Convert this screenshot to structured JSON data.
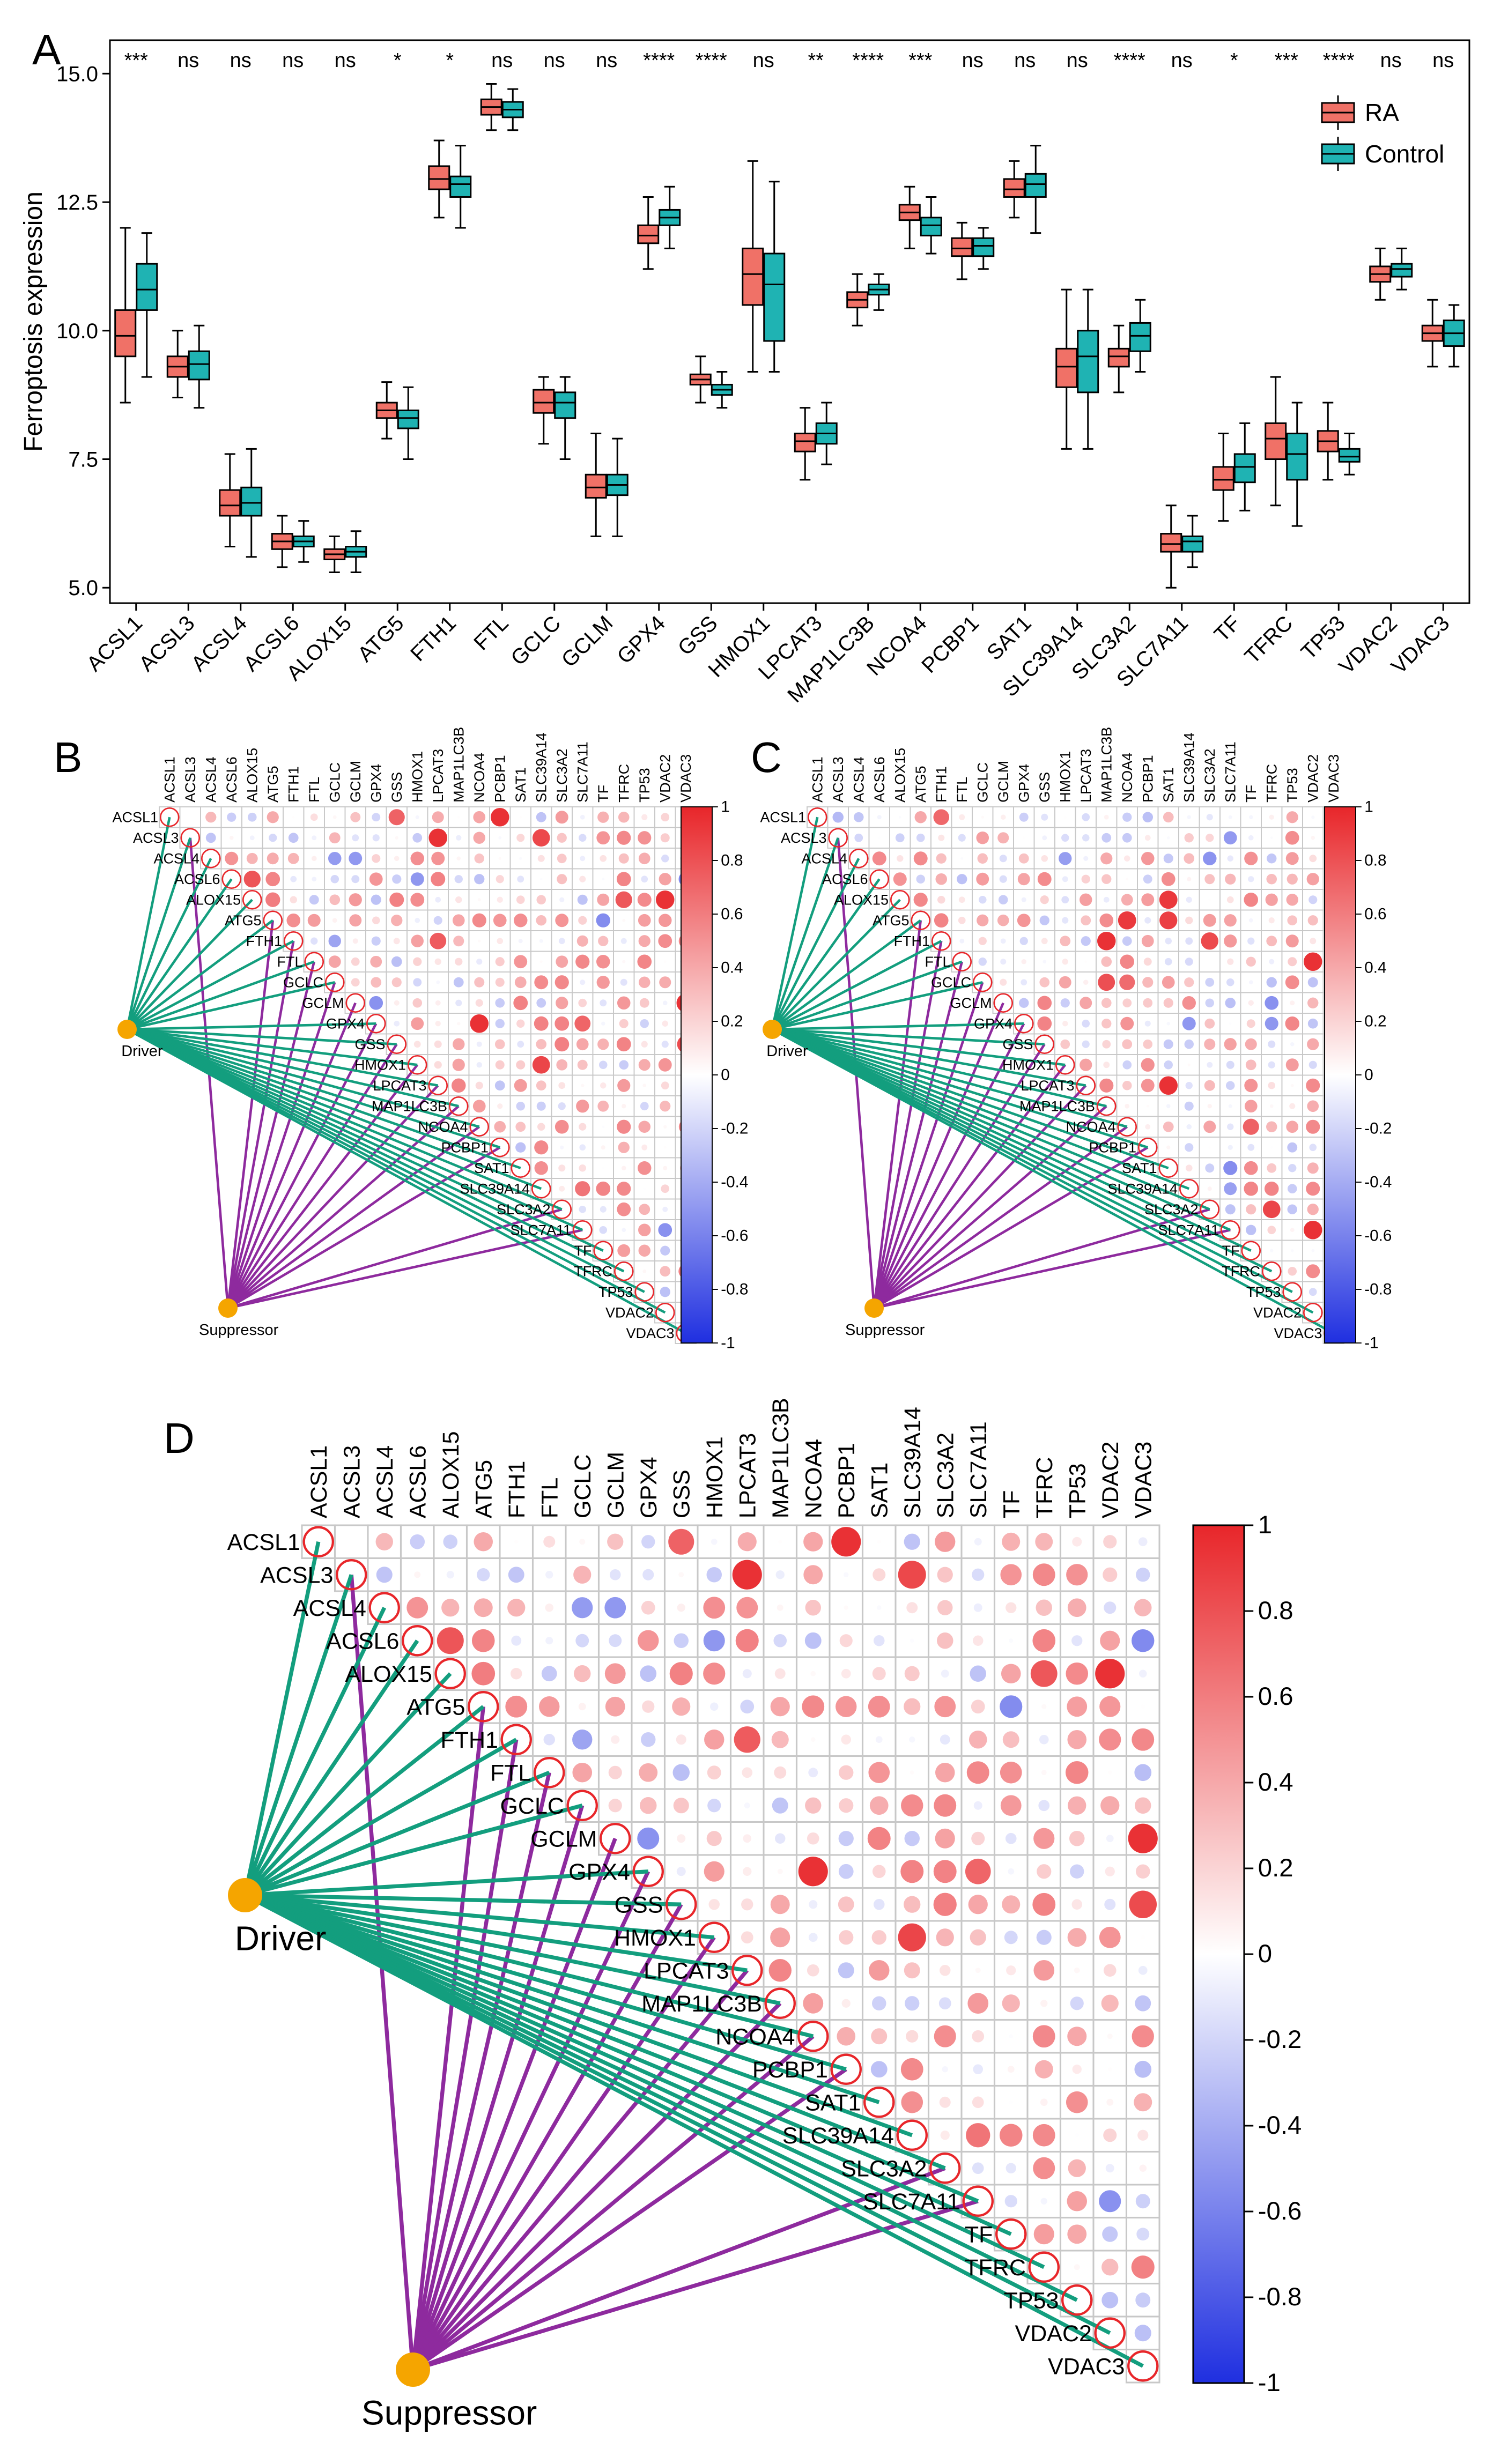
{
  "chart_data": [
    {
      "panel": "A",
      "type": "box",
      "ylabel": "Ferroptosis expression",
      "xlabel": "",
      "ylim": [
        4.7,
        15.65
      ],
      "yticks": [
        5.0,
        7.5,
        10.0,
        12.5,
        15.0
      ],
      "ytick_labels": [
        "5.0",
        "7.5",
        "10.0",
        "12.5",
        "15.0"
      ],
      "legend": {
        "position": "top-right",
        "entries": [
          "RA",
          "Control"
        ]
      },
      "colors": {
        "RA": "#F07167",
        "Control": "#1FB3B3"
      },
      "categories": [
        "ACSL1",
        "ACSL3",
        "ACSL4",
        "ACSL6",
        "ALOX15",
        "ATG5",
        "FTH1",
        "FTL",
        "GCLC",
        "GCLM",
        "GPX4",
        "GSS",
        "HMOX1",
        "LPCAT3",
        "MAP1LC3B",
        "NCOA4",
        "PCBP1",
        "SAT1",
        "SLC39A14",
        "SLC3A2",
        "SLC7A11",
        "TF",
        "TFRC",
        "TP53",
        "VDAC2",
        "VDAC3"
      ],
      "significance": [
        "***",
        "ns",
        "ns",
        "ns",
        "ns",
        "*",
        "*",
        "ns",
        "ns",
        "ns",
        "****",
        "****",
        "ns",
        "**",
        "****",
        "***",
        "ns",
        "ns",
        "ns",
        "****",
        "ns",
        "*",
        "***",
        "****",
        "ns",
        "ns"
      ],
      "series": [
        {
          "name": "RA",
          "boxes": [
            [
              8.6,
              9.5,
              9.9,
              10.4,
              12.0
            ],
            [
              8.7,
              9.1,
              9.3,
              9.5,
              10.0
            ],
            [
              5.8,
              6.4,
              6.6,
              6.9,
              7.6
            ],
            [
              5.4,
              5.75,
              5.9,
              6.05,
              6.4
            ],
            [
              5.3,
              5.55,
              5.65,
              5.75,
              6.0
            ],
            [
              7.9,
              8.3,
              8.45,
              8.6,
              9.0
            ],
            [
              12.2,
              12.75,
              12.95,
              13.2,
              13.7
            ],
            [
              13.9,
              14.2,
              14.35,
              14.5,
              14.8
            ],
            [
              7.8,
              8.4,
              8.6,
              8.85,
              9.1
            ],
            [
              6.0,
              6.75,
              6.95,
              7.2,
              8.0
            ],
            [
              11.2,
              11.7,
              11.85,
              12.05,
              12.6
            ],
            [
              8.6,
              8.95,
              9.05,
              9.15,
              9.5
            ],
            [
              9.2,
              10.5,
              11.1,
              11.6,
              13.3
            ],
            [
              7.1,
              7.65,
              7.85,
              8.0,
              8.5
            ],
            [
              10.1,
              10.45,
              10.6,
              10.75,
              11.1
            ],
            [
              11.6,
              12.15,
              12.3,
              12.45,
              12.8
            ],
            [
              11.0,
              11.45,
              11.6,
              11.8,
              12.1
            ],
            [
              12.2,
              12.6,
              12.75,
              12.95,
              13.3
            ],
            [
              7.7,
              8.9,
              9.3,
              9.65,
              10.8
            ],
            [
              8.8,
              9.3,
              9.5,
              9.65,
              10.1
            ],
            [
              5.0,
              5.7,
              5.85,
              6.05,
              6.6
            ],
            [
              6.3,
              6.9,
              7.1,
              7.35,
              8.0
            ],
            [
              6.6,
              7.5,
              7.9,
              8.2,
              9.1
            ],
            [
              7.1,
              7.65,
              7.85,
              8.05,
              8.6
            ],
            [
              10.6,
              10.95,
              11.1,
              11.25,
              11.6
            ],
            [
              9.3,
              9.8,
              9.95,
              10.1,
              10.6
            ]
          ]
        },
        {
          "name": "Control",
          "boxes": [
            [
              9.1,
              10.4,
              10.8,
              11.3,
              11.9
            ],
            [
              8.5,
              9.05,
              9.35,
              9.6,
              10.1
            ],
            [
              5.6,
              6.4,
              6.65,
              6.95,
              7.7
            ],
            [
              5.5,
              5.8,
              5.9,
              6.0,
              6.3
            ],
            [
              5.3,
              5.6,
              5.7,
              5.8,
              6.1
            ],
            [
              7.5,
              8.1,
              8.3,
              8.45,
              8.9
            ],
            [
              12.0,
              12.6,
              12.85,
              13.0,
              13.6
            ],
            [
              13.9,
              14.15,
              14.3,
              14.45,
              14.7
            ],
            [
              7.5,
              8.3,
              8.6,
              8.8,
              9.1
            ],
            [
              6.0,
              6.8,
              7.0,
              7.2,
              7.9
            ],
            [
              11.6,
              12.05,
              12.2,
              12.35,
              12.8
            ],
            [
              8.5,
              8.75,
              8.85,
              8.95,
              9.2
            ],
            [
              9.2,
              9.8,
              10.9,
              11.5,
              12.9
            ],
            [
              7.4,
              7.8,
              8.0,
              8.2,
              8.6
            ],
            [
              10.4,
              10.7,
              10.8,
              10.9,
              11.1
            ],
            [
              11.5,
              11.85,
              12.05,
              12.2,
              12.6
            ],
            [
              11.2,
              11.45,
              11.65,
              11.8,
              12.0
            ],
            [
              11.9,
              12.6,
              12.85,
              13.05,
              13.6
            ],
            [
              7.7,
              8.8,
              9.5,
              10.0,
              10.8
            ],
            [
              9.2,
              9.6,
              9.9,
              10.15,
              10.6
            ],
            [
              5.4,
              5.7,
              5.9,
              6.0,
              6.4
            ],
            [
              6.5,
              7.05,
              7.35,
              7.6,
              8.2
            ],
            [
              6.2,
              7.1,
              7.6,
              8.0,
              8.6
            ],
            [
              7.2,
              7.45,
              7.55,
              7.7,
              8.0
            ],
            [
              10.8,
              11.05,
              11.2,
              11.3,
              11.6
            ],
            [
              9.3,
              9.7,
              9.95,
              10.2,
              10.5
            ]
          ]
        }
      ]
    },
    {
      "panel": "B",
      "type": "correlation-network",
      "labels": [
        "ACSL1",
        "ACSL3",
        "ACSL4",
        "ACSL6",
        "ALOX15",
        "ATG5",
        "FTH1",
        "FTL",
        "GCLC",
        "GCLM",
        "GPX4",
        "GSS",
        "HMOX1",
        "LPCAT3",
        "MAP1LC3B",
        "NCOA4",
        "PCBP1",
        "SAT1",
        "SLC39A14",
        "SLC3A2",
        "SLC7A11",
        "TF",
        "TFRC",
        "TP53",
        "VDAC2",
        "VDAC3"
      ],
      "nodes": [
        "Driver",
        "Suppressor"
      ],
      "colorbar_ticks": [
        "1",
        "0.8",
        "0.6",
        "0.4",
        "0.2",
        "0",
        "-0.2",
        "-0.4",
        "-0.6",
        "-0.8",
        "-1"
      ],
      "correlation_seed": 11
    },
    {
      "panel": "C",
      "type": "correlation-network",
      "labels": [
        "ACSL1",
        "ACSL3",
        "ACSL4",
        "ACSL6",
        "ALOX15",
        "ATG5",
        "FTH1",
        "FTL",
        "GCLC",
        "GCLM",
        "GPX4",
        "GSS",
        "HMOX1",
        "LPCAT3",
        "MAP1LC3B",
        "NCOA4",
        "PCBP1",
        "SAT1",
        "SLC39A14",
        "SLC3A2",
        "SLC7A11",
        "TF",
        "TFRC",
        "TP53",
        "VDAC2",
        "VDAC3"
      ],
      "nodes": [
        "Driver",
        "Suppressor"
      ],
      "colorbar_ticks": [
        "1",
        "0.8",
        "0.6",
        "0.4",
        "0.2",
        "0",
        "-0.2",
        "-0.4",
        "-0.6",
        "-0.8",
        "-1"
      ],
      "correlation_seed": 37
    },
    {
      "panel": "D",
      "type": "correlation-network",
      "labels": [
        "ACSL1",
        "ACSL3",
        "ACSL4",
        "ACSL6",
        "ALOX15",
        "ATG5",
        "FTH1",
        "FTL",
        "GCLC",
        "GCLM",
        "GPX4",
        "GSS",
        "HMOX1",
        "LPCAT3",
        "MAP1LC3B",
        "NCOA4",
        "PCBP1",
        "SAT1",
        "SLC39A14",
        "SLC3A2",
        "SLC7A11",
        "TF",
        "TFRC",
        "TP53",
        "VDAC2",
        "VDAC3"
      ],
      "nodes": [
        "Driver",
        "Suppressor"
      ],
      "colorbar_ticks": [
        "1",
        "0.8",
        "0.6",
        "0.4",
        "0.2",
        "0",
        "-0.2",
        "-0.4",
        "-0.6",
        "-0.8",
        "-1"
      ],
      "correlation_seed": 11
    }
  ],
  "panel_letters": [
    "A",
    "B",
    "C",
    "D"
  ],
  "network": {
    "driver_genes": [
      "ACSL1",
      "ACSL3",
      "ACSL4",
      "ACSL6",
      "ALOX15",
      "ATG5",
      "FTH1",
      "FTL",
      "GCLC",
      "GPX4",
      "GSS",
      "HMOX1",
      "LPCAT3",
      "MAP1LC3B",
      "NCOA4",
      "PCBP1",
      "SAT1",
      "SLC39A14",
      "SLC3A2",
      "SLC7A11",
      "TF",
      "TFRC",
      "TP53",
      "VDAC2",
      "VDAC3"
    ],
    "suppressor_genes": [
      "ACSL3",
      "ATG5",
      "FTH1",
      "FTL",
      "GCLC",
      "GCLM",
      "GPX4",
      "GSS",
      "HMOX1",
      "LPCAT3",
      "MAP1LC3B",
      "NCOA4",
      "PCBP1",
      "SLC3A2",
      "SLC7A11"
    ]
  },
  "colors": {
    "driver_node": "#F5A500",
    "suppressor_node": "#F5A500",
    "driver_edge": "#139E7E",
    "suppressor_edge": "#8E2A9E",
    "positive": "#E8262A",
    "negative": "#1F2FE0",
    "grid": "#C8C8C8",
    "diag_circle": "#E8262A"
  }
}
